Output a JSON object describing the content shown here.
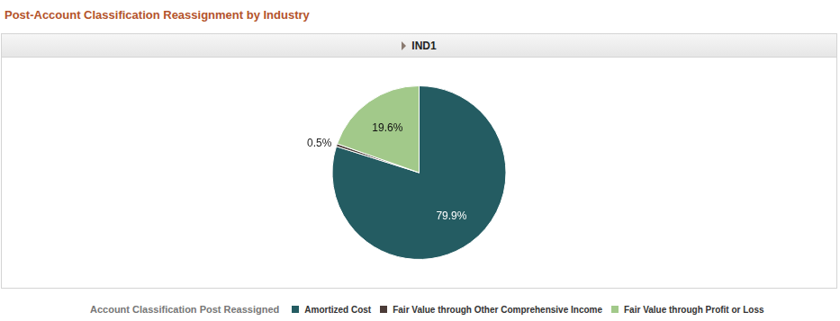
{
  "chart_data": {
    "type": "pie",
    "title": "Post-Account Classification Reassignment by Industry",
    "subtitle": "IND1",
    "legend_title": "Account Classification Post Reassigned",
    "categories": [
      "Amortized Cost",
      "Fair Value through Other Comprehensive Income",
      "Fair Value through Profit or Loss"
    ],
    "values": [
      79.9,
      0.5,
      19.6
    ],
    "value_labels": [
      "79.9%",
      "0.5%",
      "19.6%"
    ],
    "colors": [
      "#245c62",
      "#4b3b37",
      "#a2c98a"
    ],
    "legend": "bottom",
    "data_labels": true
  }
}
